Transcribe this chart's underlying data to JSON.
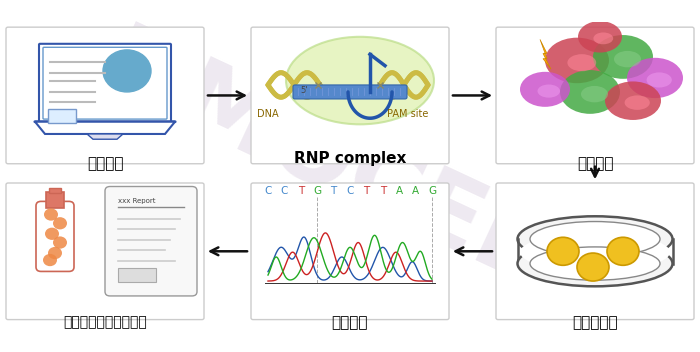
{
  "background_color": "#ffffff",
  "watermark_text": "NMOCELL",
  "watermark_color": "#c8b8d0",
  "watermark_alpha": 0.3,
  "seq_letters": [
    "C",
    "C",
    "T",
    "G",
    "T",
    "C",
    "T",
    "T",
    "A",
    "A",
    "G"
  ],
  "seq_colors": [
    "#4488cc",
    "#4488cc",
    "#cc3333",
    "#33aa33",
    "#4488cc",
    "#4488cc",
    "#cc3333",
    "#cc3333",
    "#33aa33",
    "#33aa33",
    "#33aa33"
  ],
  "label_fontsize": 10
}
